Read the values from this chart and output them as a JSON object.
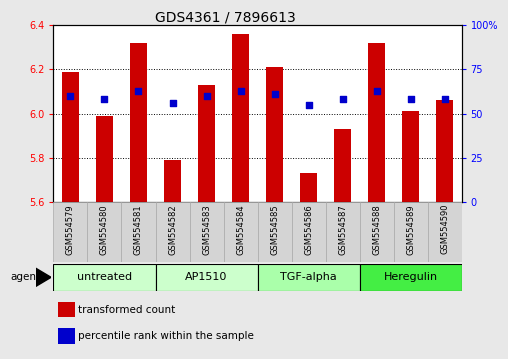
{
  "title": "GDS4361 / 7896613",
  "samples": [
    "GSM554579",
    "GSM554580",
    "GSM554581",
    "GSM554582",
    "GSM554583",
    "GSM554584",
    "GSM554585",
    "GSM554586",
    "GSM554587",
    "GSM554588",
    "GSM554589",
    "GSM554590"
  ],
  "bar_values": [
    6.19,
    5.99,
    6.32,
    5.79,
    6.13,
    6.36,
    6.21,
    5.73,
    5.93,
    6.32,
    6.01,
    6.06
  ],
  "percentile_values": [
    6.08,
    6.065,
    6.1,
    6.05,
    6.08,
    6.1,
    6.09,
    6.04,
    6.065,
    6.1,
    6.065,
    6.065
  ],
  "ylim_left": [
    5.6,
    6.4
  ],
  "ylim_right": [
    0,
    100
  ],
  "yticks_left": [
    5.6,
    5.8,
    6.0,
    6.2,
    6.4
  ],
  "yticks_right": [
    0,
    25,
    50,
    75,
    100
  ],
  "ytick_labels_right": [
    "0",
    "25",
    "50",
    "75",
    "100%"
  ],
  "bar_color": "#cc0000",
  "percentile_color": "#0000cc",
  "bar_bottom": 5.6,
  "groups": [
    {
      "label": "untreated",
      "start": 0,
      "end": 2,
      "color": "#ccffcc"
    },
    {
      "label": "AP1510",
      "start": 3,
      "end": 5,
      "color": "#ccffcc"
    },
    {
      "label": "TGF-alpha",
      "start": 6,
      "end": 8,
      "color": "#aaffaa"
    },
    {
      "label": "Heregulin",
      "start": 9,
      "end": 11,
      "color": "#44ee44"
    }
  ],
  "agent_label": "agent",
  "legend_bar_label": "transformed count",
  "legend_pct_label": "percentile rank within the sample",
  "background_color": "#e8e8e8",
  "plot_bg": "#ffffff",
  "sample_box_color": "#d4d4d4",
  "title_fontsize": 10,
  "tick_fontsize": 7,
  "sample_fontsize": 6,
  "group_fontsize": 8,
  "legend_fontsize": 7.5
}
